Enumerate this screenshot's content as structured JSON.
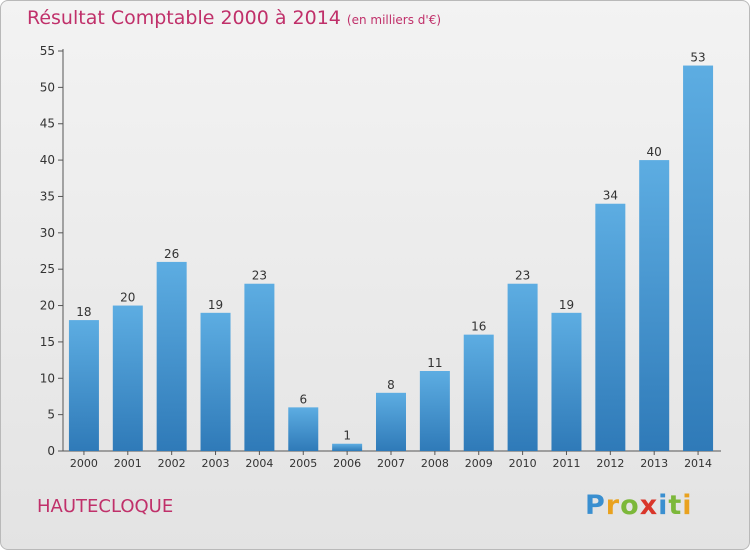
{
  "chart_data": {
    "type": "bar",
    "title": "Résultat Comptable 2000 à 2014",
    "subtitle": "(en milliers d'€)",
    "categories": [
      "2000",
      "2001",
      "2002",
      "2003",
      "2004",
      "2005",
      "2006",
      "2007",
      "2008",
      "2009",
      "2010",
      "2011",
      "2012",
      "2013",
      "2014"
    ],
    "values": [
      18,
      20,
      26,
      19,
      23,
      6,
      1,
      8,
      11,
      16,
      23,
      19,
      34,
      40,
      53
    ],
    "ylim": [
      0,
      55
    ],
    "yticks": [
      0,
      5,
      10,
      15,
      20,
      25,
      30,
      35,
      40,
      45,
      50,
      55
    ],
    "grid": false,
    "bar_color_top": "#5dade2",
    "bar_color_bottom": "#2f7ab8"
  },
  "commune": "HAUTECLOQUE",
  "logo": {
    "text": "Proxiti",
    "letters": [
      "P",
      "r",
      "o",
      "x",
      "i",
      "t",
      "i"
    ],
    "colors": [
      "#3a8fd0",
      "#e9a21f",
      "#7cb83a",
      "#d9362a",
      "#3a8fd0",
      "#7cb83a",
      "#e9a21f"
    ]
  }
}
